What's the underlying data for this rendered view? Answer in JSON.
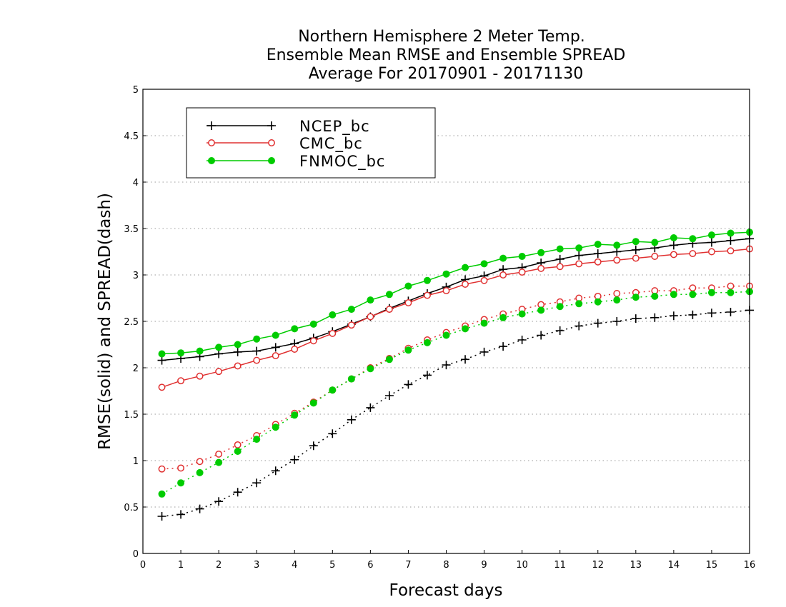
{
  "chart_data": {
    "type": "line",
    "title": [
      "Northern Hemisphere 2 Meter Temp.",
      "Ensemble Mean RMSE and Ensemble SPREAD",
      "Average For 20170901 - 20171130"
    ],
    "xlabel": "Forecast days",
    "ylabel": "RMSE(solid) and SPREAD(dash)",
    "xlim": [
      0,
      16
    ],
    "ylim": [
      0,
      5
    ],
    "xticks": [
      "0",
      "1",
      "2",
      "3",
      "4",
      "5",
      "6",
      "7",
      "8",
      "9",
      "10",
      "11",
      "12",
      "13",
      "14",
      "15",
      "16"
    ],
    "yticks": [
      "0",
      "0.5",
      "1",
      "1.5",
      "2",
      "2.5",
      "3",
      "3.5",
      "4",
      "4.5",
      "5"
    ],
    "grid": "horizontal dotted",
    "legend_position": "top-left",
    "x": [
      0.5,
      1,
      1.5,
      2,
      2.5,
      3,
      3.5,
      4,
      4.5,
      5,
      5.5,
      6,
      6.5,
      7,
      7.5,
      8,
      8.5,
      9,
      9.5,
      10,
      10.5,
      11,
      11.5,
      12,
      12.5,
      13,
      13.5,
      14,
      14.5,
      15,
      15.5,
      16
    ],
    "series": [
      {
        "name": "NCEP_bc",
        "color": "#000000",
        "marker": "plus",
        "style": "solid",
        "values": [
          2.08,
          2.1,
          2.12,
          2.15,
          2.17,
          2.18,
          2.22,
          2.26,
          2.32,
          2.39,
          2.47,
          2.55,
          2.64,
          2.72,
          2.8,
          2.87,
          2.95,
          2.99,
          3.06,
          3.08,
          3.13,
          3.17,
          3.21,
          3.23,
          3.25,
          3.27,
          3.29,
          3.32,
          3.34,
          3.35,
          3.37,
          3.39
        ]
      },
      {
        "name": "CMC_bc",
        "color": "#e03030",
        "marker": "open-circle",
        "style": "solid",
        "values": [
          1.79,
          1.86,
          1.91,
          1.96,
          2.02,
          2.08,
          2.13,
          2.2,
          2.29,
          2.37,
          2.46,
          2.55,
          2.63,
          2.7,
          2.78,
          2.83,
          2.9,
          2.94,
          3.0,
          3.03,
          3.07,
          3.09,
          3.12,
          3.14,
          3.16,
          3.18,
          3.2,
          3.22,
          3.23,
          3.25,
          3.26,
          3.28
        ]
      },
      {
        "name": "FNMOC_bc",
        "color": "#00cc00",
        "marker": "filled-circle",
        "style": "solid",
        "values": [
          2.15,
          2.16,
          2.18,
          2.22,
          2.25,
          2.31,
          2.35,
          2.42,
          2.47,
          2.57,
          2.63,
          2.73,
          2.79,
          2.88,
          2.94,
          3.01,
          3.08,
          3.12,
          3.18,
          3.2,
          3.24,
          3.28,
          3.29,
          3.33,
          3.32,
          3.36,
          3.35,
          3.4,
          3.39,
          3.43,
          3.45,
          3.46
        ]
      },
      {
        "name": "NCEP_bc",
        "color": "#000000",
        "marker": "plus",
        "style": "dash",
        "values": [
          0.4,
          0.42,
          0.48,
          0.56,
          0.66,
          0.76,
          0.89,
          1.01,
          1.16,
          1.29,
          1.44,
          1.57,
          1.7,
          1.82,
          1.92,
          2.03,
          2.09,
          2.17,
          2.23,
          2.3,
          2.35,
          2.4,
          2.45,
          2.48,
          2.5,
          2.53,
          2.54,
          2.56,
          2.57,
          2.59,
          2.6,
          2.62
        ]
      },
      {
        "name": "CMC_bc",
        "color": "#e03030",
        "marker": "open-circle",
        "style": "dash",
        "values": [
          0.91,
          0.92,
          0.99,
          1.07,
          1.17,
          1.27,
          1.39,
          1.51,
          1.63,
          1.76,
          1.88,
          2.0,
          2.1,
          2.21,
          2.3,
          2.38,
          2.45,
          2.52,
          2.58,
          2.63,
          2.68,
          2.71,
          2.75,
          2.77,
          2.8,
          2.81,
          2.83,
          2.83,
          2.86,
          2.86,
          2.88,
          2.88
        ]
      },
      {
        "name": "FNMOC_bc",
        "color": "#00cc00",
        "marker": "filled-circle",
        "style": "dash",
        "values": [
          0.64,
          0.76,
          0.87,
          0.98,
          1.1,
          1.23,
          1.36,
          1.49,
          1.62,
          1.76,
          1.88,
          1.99,
          2.09,
          2.19,
          2.27,
          2.35,
          2.42,
          2.48,
          2.54,
          2.58,
          2.62,
          2.66,
          2.69,
          2.71,
          2.73,
          2.76,
          2.77,
          2.79,
          2.79,
          2.81,
          2.81,
          2.82
        ]
      }
    ]
  }
}
